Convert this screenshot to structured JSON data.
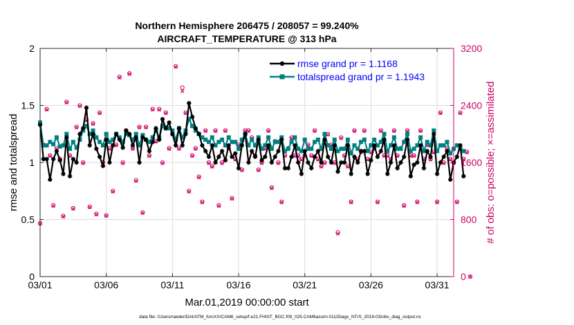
{
  "chart_data": {
    "type": "line",
    "title": "Northern Hemisphere 206475 / 208057 = 99.240%",
    "subtitle": "AIRCRAFT_TEMPERATURE @ 313 hPa",
    "xlabel": "Mar.01,2019 00:00:00 start",
    "ylabel_left": "rmse and totalspread",
    "ylabel_right": "# of obs: o=possible; ×=assimilated",
    "footnote": "data file: /Users/raeder/DAI/ATM_forcXX/CAM6_setup/f.e21.FHIST_BGC.f09_025.CAM6assim.011/Diags_NTrS_2019-03/obs_diag_output.nc",
    "xlim": [
      0,
      31.25
    ],
    "ylim_left": [
      0,
      2
    ],
    "ylim_right": [
      0,
      3200
    ],
    "x_ticks": [
      {
        "value": 0,
        "label": "03/01"
      },
      {
        "value": 5,
        "label": "03/06"
      },
      {
        "value": 10,
        "label": "03/11"
      },
      {
        "value": 15,
        "label": "03/16"
      },
      {
        "value": 20,
        "label": "03/21"
      },
      {
        "value": 25,
        "label": "03/26"
      },
      {
        "value": 30,
        "label": "03/31"
      }
    ],
    "y_ticks_left": [
      "0",
      "0.5",
      "1",
      "1.5",
      "2"
    ],
    "y_ticks_right": [
      "0",
      "800",
      "1600",
      "2400",
      "3200"
    ],
    "x_step_days": 0.25,
    "colors": {
      "rmse": "#000000",
      "spread": "#008080",
      "obs": "#cc0066",
      "legend_text": "#0000ff"
    },
    "series": [
      {
        "name": "rmse grand pr = 1.1168",
        "values": [
          1.33,
          1.03,
          1.03,
          0.85,
          1.03,
          1.1,
          1.02,
          0.9,
          1.22,
          0.88,
          1.03,
          1.0,
          1.25,
          1.3,
          1.48,
          1.15,
          1.25,
          1.12,
          1.05,
          0.97,
          1.2,
          1.0,
          1.15,
          1.25,
          1.2,
          1.13,
          1.28,
          1.25,
          1.15,
          1.22,
          1.0,
          1.22,
          1.2,
          1.1,
          1.18,
          1.3,
          1.2,
          1.38,
          1.3,
          1.35,
          1.25,
          1.15,
          1.3,
          1.15,
          1.25,
          1.52,
          1.4,
          1.3,
          1.25,
          1.15,
          1.1,
          1.05,
          1.15,
          1.0,
          1.05,
          1.1,
          1.02,
          1.15,
          1.05,
          1.08,
          0.95,
          1.15,
          1.25,
          1.0,
          1.1,
          1.05,
          1.2,
          1.02,
          1.05,
          1.15,
          1.0,
          1.05,
          1.1,
          1.2,
          0.95,
          0.95,
          1.05,
          1.15,
          1.0,
          0.9,
          1.1,
          1.0,
          0.95,
          1.05,
          1.1,
          1.0,
          1.2,
          1.05,
          1.0,
          1.15,
          0.92,
          1.0,
          1.0,
          1.15,
          0.9,
          1.05,
          1.0,
          1.1,
          1.1,
          0.9,
          1.02,
          1.15,
          1.05,
          1.1,
          1.2,
          0.9,
          1.0,
          1.15,
          0.95,
          1.0,
          1.05,
          1.2,
          0.88,
          0.98,
          1.0,
          1.15,
          0.95,
          1.1,
          1.05,
          1.25,
          0.9,
          1.0,
          1.05,
          1.1,
          0.85,
          1.0,
          1.05,
          1.15,
          0.88
        ]
      },
      {
        "name": "totalspread grand pr = 1.1943",
        "values": [
          1.35,
          1.15,
          1.15,
          1.18,
          1.16,
          1.22,
          1.14,
          1.15,
          1.25,
          1.12,
          1.18,
          1.13,
          1.2,
          1.28,
          1.32,
          1.25,
          1.28,
          1.22,
          1.18,
          1.15,
          1.25,
          1.18,
          1.2,
          1.25,
          1.22,
          1.18,
          1.25,
          1.24,
          1.2,
          1.25,
          1.15,
          1.24,
          1.2,
          1.18,
          1.22,
          1.28,
          1.22,
          1.32,
          1.3,
          1.3,
          1.28,
          1.2,
          1.3,
          1.22,
          1.28,
          1.38,
          1.32,
          1.28,
          1.25,
          1.22,
          1.2,
          1.18,
          1.22,
          1.15,
          1.18,
          1.2,
          1.15,
          1.22,
          1.18,
          1.18,
          1.12,
          1.2,
          1.25,
          1.15,
          1.2,
          1.15,
          1.22,
          1.12,
          1.15,
          1.22,
          1.12,
          1.18,
          1.18,
          1.22,
          1.1,
          1.12,
          1.18,
          1.22,
          1.12,
          1.1,
          1.2,
          1.12,
          1.12,
          1.18,
          1.2,
          1.12,
          1.25,
          1.15,
          1.12,
          1.2,
          1.1,
          1.12,
          1.12,
          1.2,
          1.08,
          1.15,
          1.12,
          1.18,
          1.2,
          1.1,
          1.15,
          1.2,
          1.15,
          1.18,
          1.25,
          1.1,
          1.15,
          1.22,
          1.12,
          1.12,
          1.18,
          1.25,
          1.1,
          1.12,
          1.15,
          1.22,
          1.1,
          1.18,
          1.15,
          1.28,
          1.1,
          1.15,
          1.15,
          1.18,
          1.08,
          1.12,
          1.15,
          1.12,
          1.1
        ]
      },
      {
        "name": "obs possible",
        "axis": "right",
        "marker": "o",
        "values": [
          750,
          1850,
          2350,
          1700,
          1000,
          1800,
          1650,
          850,
          2450,
          1700,
          960,
          2100,
          2400,
          1600,
          2200,
          980,
          2150,
          880,
          2300,
          1600,
          860,
          1800,
          1200,
          1850,
          2800,
          1600,
          2050,
          2850,
          1800,
          1350,
          2100,
          900,
          2100,
          1700,
          2350,
          1900,
          2350,
          1600,
          2300,
          1800,
          2000,
          2950,
          1800,
          2650,
          2300,
          1200,
          1700,
          1800,
          1400,
          1050,
          2050,
          1600,
          1550,
          2050,
          1000,
          1600,
          2050,
          1800,
          1100,
          1650,
          1850,
          1500,
          2050,
          2050,
          1950,
          1700,
          1500,
          1600,
          1800,
          2050,
          1250,
          1900,
          1600,
          1050,
          1700,
          1800,
          1950,
          1700,
          1700,
          1650,
          1700,
          1850,
          1700,
          2050,
          1650,
          1550,
          1600,
          2000,
          1850,
          1600,
          620,
          1950,
          1700,
          1550,
          1050,
          2050,
          1650,
          1750,
          2050,
          1650,
          1750,
          1800,
          1050,
          2050,
          1700,
          1700,
          1650,
          2050,
          1700,
          1800,
          1000,
          2050,
          1700,
          1700,
          1050,
          2050,
          1650,
          1850,
          1650,
          1750,
          1050,
          2300,
          1600,
          1800,
          1650,
          1600,
          1050,
          2300,
          1650,
          1750,
          0
        ]
      },
      {
        "name": "obs assimilated",
        "axis": "right",
        "marker": "x",
        "values": [
          740,
          1840,
          2340,
          1690,
          990,
          1790,
          1640,
          840,
          2440,
          1690,
          950,
          2090,
          2390,
          1590,
          2190,
          970,
          2140,
          870,
          2290,
          1590,
          850,
          1790,
          1190,
          1840,
          2790,
          1590,
          2040,
          2840,
          1790,
          1340,
          2090,
          890,
          2090,
          1690,
          2340,
          1890,
          2340,
          1590,
          2290,
          1790,
          1990,
          2940,
          1790,
          2600,
          2290,
          1190,
          1690,
          1790,
          1390,
          1040,
          2040,
          1590,
          1540,
          2040,
          990,
          1590,
          2040,
          1790,
          1090,
          1640,
          1840,
          1490,
          2040,
          2040,
          1940,
          1690,
          1490,
          1590,
          1790,
          2040,
          1240,
          1890,
          1590,
          1040,
          1690,
          1790,
          1940,
          1690,
          1690,
          1640,
          1690,
          1840,
          1690,
          2040,
          1640,
          1540,
          1590,
          1990,
          1840,
          1590,
          600,
          1940,
          1690,
          1540,
          1040,
          2040,
          1640,
          1740,
          2040,
          1640,
          1740,
          1790,
          1040,
          2040,
          1690,
          1690,
          1640,
          2040,
          1690,
          1790,
          990,
          2040,
          1690,
          1690,
          1040,
          2040,
          1640,
          1840,
          1640,
          1740,
          1040,
          2290,
          1590,
          1790,
          1640,
          1590,
          1040,
          2290,
          1640,
          1740,
          0
        ]
      }
    ]
  }
}
